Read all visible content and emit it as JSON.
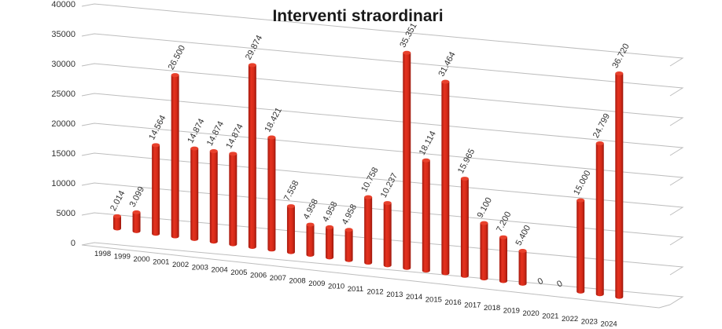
{
  "chart_data": {
    "type": "bar",
    "title": "Interventi straordinari",
    "xlabel": "",
    "ylabel": "",
    "ylim": [
      0,
      40000
    ],
    "yticks": [
      "0",
      "5000",
      "10000",
      "15000",
      "20000",
      "25000",
      "30000",
      "35000",
      "40000"
    ],
    "grid": true,
    "categories": [
      "1998",
      "1999",
      "2000",
      "2001",
      "2002",
      "2003",
      "2004",
      "2005",
      "2006",
      "2007",
      "2008",
      "2009",
      "2010",
      "2011",
      "2012",
      "2013",
      "2014",
      "2015",
      "2016",
      "2017",
      "2018",
      "2019",
      "2020",
      "2021",
      "2022",
      "2023",
      "2024"
    ],
    "values": [
      2014,
      3099,
      14564,
      26500,
      14874,
      14874,
      14874,
      29874,
      18421,
      7558,
      4958,
      4958,
      4958,
      10758,
      10237,
      35351,
      18114,
      31464,
      15965,
      9100,
      7200,
      5400,
      0,
      0,
      15000,
      24799,
      36720
    ],
    "data_labels": [
      "2.014",
      "3.099",
      "14.564",
      "26.500",
      "14.874",
      "14.874",
      "14.874",
      "29.874",
      "18.421",
      "7.558",
      "4.958",
      "4.958",
      "4.958",
      "10.758",
      "10.237",
      "35.351",
      "18.114",
      "31.464",
      "15.965",
      "9.100",
      "7.200",
      "5.400",
      "0",
      "0",
      "15.000",
      "24.799",
      "36.720"
    ],
    "bar_color": "#d92b1c"
  }
}
